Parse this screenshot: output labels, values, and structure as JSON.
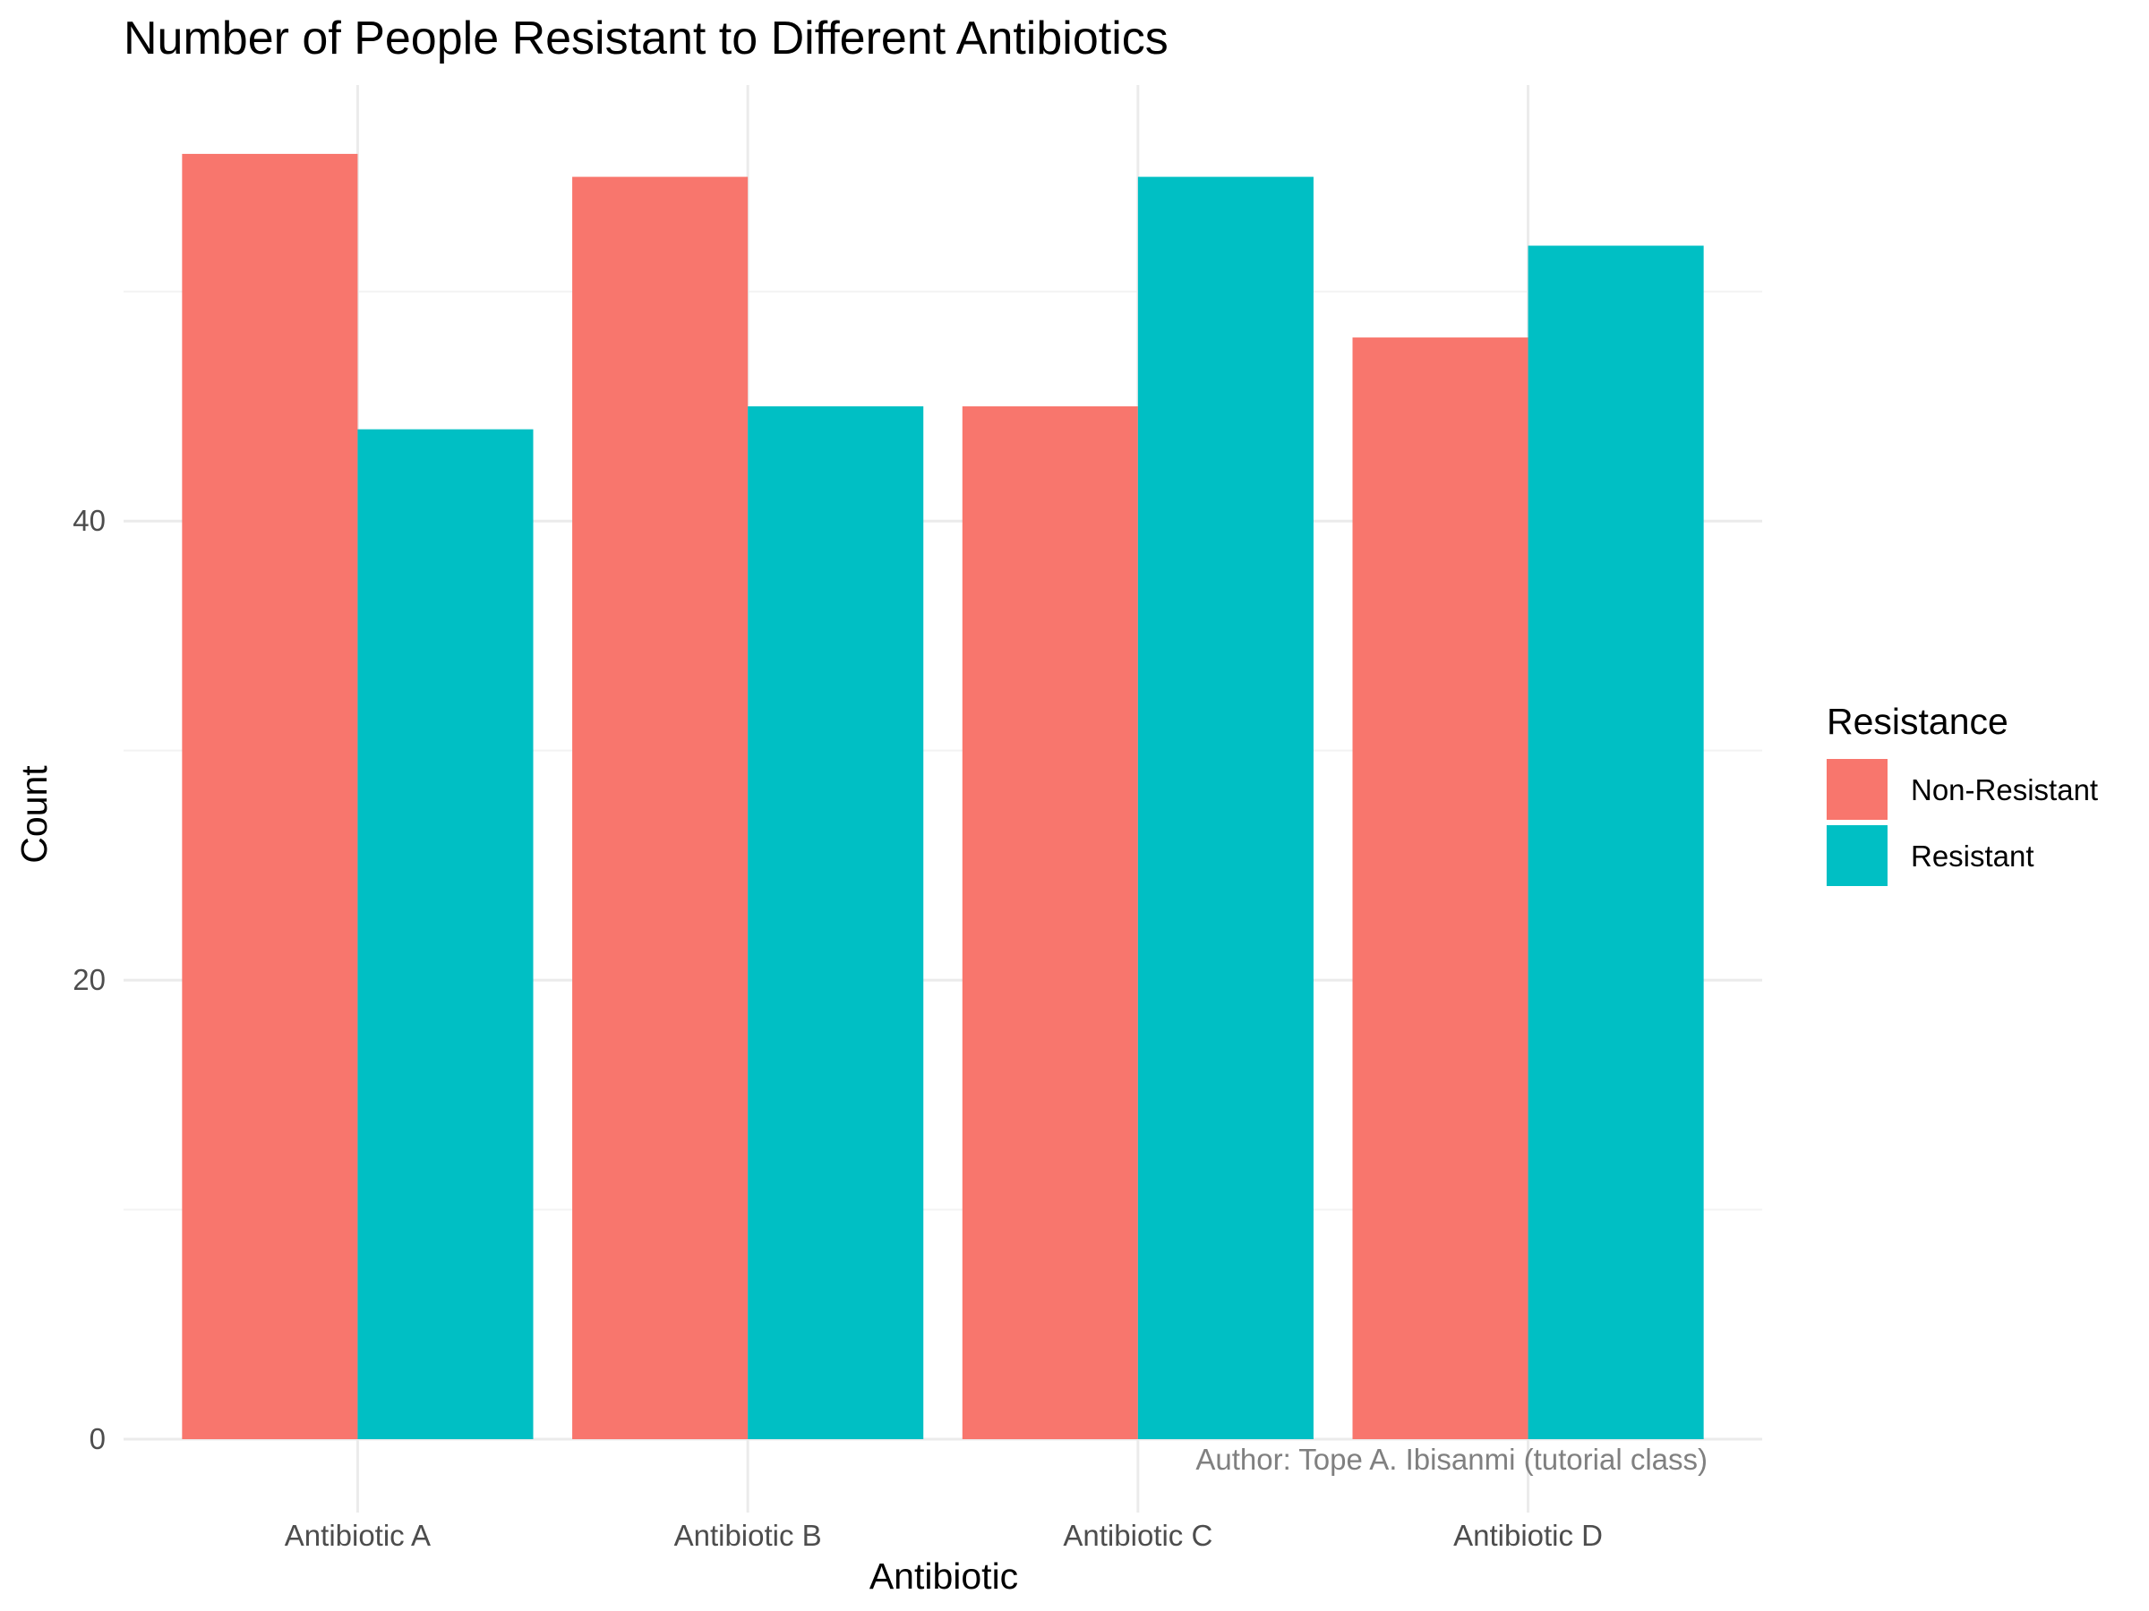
{
  "chart_data": {
    "type": "bar",
    "title": "Number of People Resistant to Different Antibiotics",
    "xlabel": "Antibiotic",
    "ylabel": "Count",
    "categories": [
      "Antibiotic A",
      "Antibiotic B",
      "Antibiotic C",
      "Antibiotic D"
    ],
    "series": [
      {
        "name": "Non-Resistant",
        "color": "#F8766D",
        "values": [
          56,
          55,
          45,
          48
        ]
      },
      {
        "name": "Resistant",
        "color": "#00BFC4",
        "values": [
          44,
          45,
          55,
          52
        ]
      }
    ],
    "ylim": [
      0,
      59
    ],
    "yticks": [
      0,
      20,
      40
    ],
    "minor_yticks": [
      10,
      30,
      50
    ],
    "grid": true,
    "legend": {
      "title": "Resistance",
      "position": "right"
    },
    "caption": "Author: Tope A. Ibisanmi (tutorial class)"
  }
}
